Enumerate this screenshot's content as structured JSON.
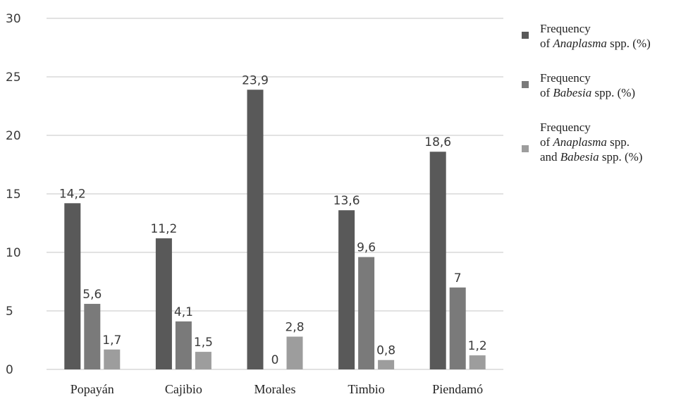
{
  "chart_data": {
    "type": "bar",
    "categories": [
      "Popayán",
      "Cajibio",
      "Morales",
      "Timbio",
      "Piendamó"
    ],
    "series": [
      {
        "name": "Frequency of Anaplasma spp. (%)",
        "values": [
          14.2,
          11.2,
          23.9,
          13.6,
          18.6
        ],
        "labels": [
          "14,2",
          "11,2",
          "23,9",
          "13,6",
          "18,6"
        ],
        "color": "#595959"
      },
      {
        "name": "Frequency of Babesia spp. (%)",
        "values": [
          5.6,
          4.1,
          0,
          9.6,
          7
        ],
        "labels": [
          "5,6",
          "4,1",
          "0",
          "9,6",
          "7"
        ],
        "color": "#7a7a7a"
      },
      {
        "name": "Frequency of Anaplasma spp. and Babesia spp. (%)",
        "values": [
          1.7,
          1.5,
          2.8,
          0.8,
          1.2
        ],
        "labels": [
          "1,7",
          "1,5",
          "2,8",
          "0,8",
          "1,2"
        ],
        "color": "#9d9d9d"
      }
    ],
    "ylim": [
      0,
      30
    ],
    "yticks": [
      "0",
      "5",
      "10",
      "15",
      "20",
      "25",
      "30"
    ],
    "grid": true,
    "legend_position": "right"
  },
  "legend": {
    "items": [
      {
        "line1": "Frequency",
        "pre": "of ",
        "em1": "Anaplasma",
        "mid": " spp. (%)",
        "em2": "",
        "post": ""
      },
      {
        "line1": "Frequency",
        "pre": "of ",
        "em1": "Babesia",
        "mid": " spp. (%)",
        "em2": "",
        "post": ""
      },
      {
        "line1": "Frequency",
        "pre": "of ",
        "em1": "Anaplasma",
        "mid": " spp.",
        "line3pre": "and ",
        "em2": "Babesia",
        "post": " spp. (%)"
      }
    ]
  }
}
